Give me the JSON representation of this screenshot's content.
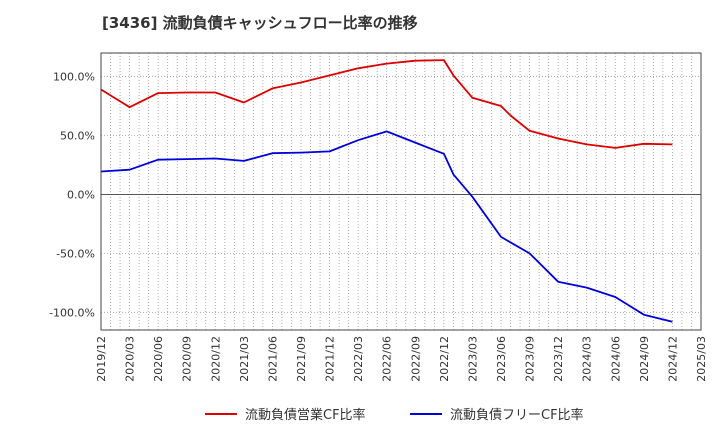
{
  "chart_data": {
    "type": "line",
    "title": "[3436]  流動負債キャッシュフロー比率の推移",
    "xlabel": "",
    "ylabel": "",
    "ylim": [
      -115,
      120
    ],
    "xlim": [
      "2019/12",
      "2025/03"
    ],
    "y_ticks": [
      100,
      50,
      0,
      -50,
      -100
    ],
    "y_tick_labels": [
      "100.0%",
      "50.0%",
      "0.0%",
      "-50.0%",
      "-100.0%"
    ],
    "x_tick_labels": [
      "2019/12",
      "2020/03",
      "2020/06",
      "2020/09",
      "2020/12",
      "2021/03",
      "2021/06",
      "2021/09",
      "2021/12",
      "2022/03",
      "2022/06",
      "2022/09",
      "2022/12",
      "2023/03",
      "2023/06",
      "2023/09",
      "2023/12",
      "2024/03",
      "2024/06",
      "2024/09",
      "2024/12",
      "2025/03"
    ],
    "grid": true,
    "legend_position": "bottom",
    "series": [
      {
        "name": "流動負債営業CF比率",
        "color": "#dd0000",
        "points": [
          {
            "x": "2019/12",
            "y": 89
          },
          {
            "x": "2020/03",
            "y": 74
          },
          {
            "x": "2020/06",
            "y": 86
          },
          {
            "x": "2020/09",
            "y": 86.5
          },
          {
            "x": "2020/12",
            "y": 86.5
          },
          {
            "x": "2021/03",
            "y": 78
          },
          {
            "x": "2021/06",
            "y": 90
          },
          {
            "x": "2021/09",
            "y": 95
          },
          {
            "x": "2021/12",
            "y": 101
          },
          {
            "x": "2022/03",
            "y": 107
          },
          {
            "x": "2022/06",
            "y": 111
          },
          {
            "x": "2022/09",
            "y": 113.5
          },
          {
            "x": "2022/12",
            "y": 114
          },
          {
            "x": "2023/01",
            "y": 101
          },
          {
            "x": "2023/03",
            "y": 82
          },
          {
            "x": "2023/06",
            "y": 75
          },
          {
            "x": "2023/07",
            "y": 67
          },
          {
            "x": "2023/09",
            "y": 54
          },
          {
            "x": "2023/12",
            "y": 47.5
          },
          {
            "x": "2024/03",
            "y": 42.5
          },
          {
            "x": "2024/06",
            "y": 39.5
          },
          {
            "x": "2024/09",
            "y": 43
          },
          {
            "x": "2024/12",
            "y": 42.5
          }
        ]
      },
      {
        "name": "流動負債フリーCF比率",
        "color": "#0000dd",
        "points": [
          {
            "x": "2019/12",
            "y": 19.5
          },
          {
            "x": "2020/03",
            "y": 21
          },
          {
            "x": "2020/06",
            "y": 29.5
          },
          {
            "x": "2020/09",
            "y": 30
          },
          {
            "x": "2020/12",
            "y": 30.5
          },
          {
            "x": "2021/03",
            "y": 28.5
          },
          {
            "x": "2021/06",
            "y": 35
          },
          {
            "x": "2021/09",
            "y": 35.5
          },
          {
            "x": "2021/12",
            "y": 36.5
          },
          {
            "x": "2022/03",
            "y": 46
          },
          {
            "x": "2022/06",
            "y": 53.5
          },
          {
            "x": "2022/09",
            "y": 44
          },
          {
            "x": "2022/12",
            "y": 34.5
          },
          {
            "x": "2023/01",
            "y": 17
          },
          {
            "x": "2023/03",
            "y": -2
          },
          {
            "x": "2023/06",
            "y": -36
          },
          {
            "x": "2023/09",
            "y": -50
          },
          {
            "x": "2023/12",
            "y": -74
          },
          {
            "x": "2024/03",
            "y": -79
          },
          {
            "x": "2024/06",
            "y": -87
          },
          {
            "x": "2024/09",
            "y": -102
          },
          {
            "x": "2024/12",
            "y": -108
          }
        ]
      }
    ]
  }
}
